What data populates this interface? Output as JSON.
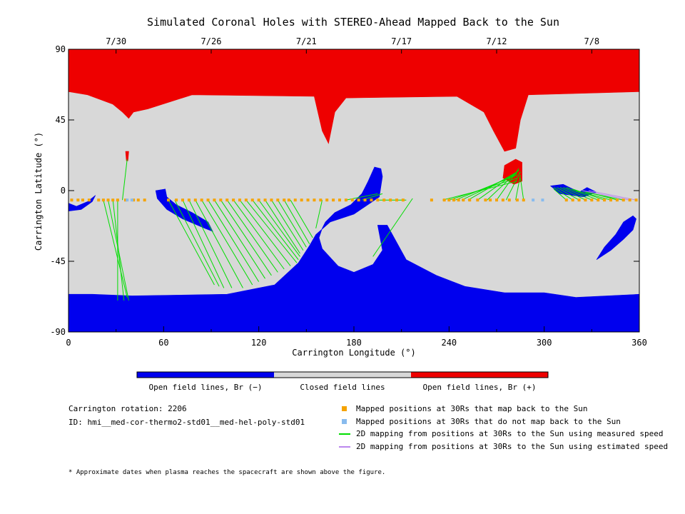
{
  "chart_data": {
    "type": "map",
    "title": "Simulated Coronal Holes with STEREO-Ahead Mapped Back to the Sun",
    "xlabel": "Carrington Longitude (°)",
    "ylabel": "Carrington Latitude (°)",
    "xlim": [
      0,
      360
    ],
    "ylim": [
      -90,
      90
    ],
    "x_ticks": [
      0,
      60,
      120,
      180,
      240,
      300,
      360
    ],
    "y_ticks": [
      90,
      45,
      0,
      -45,
      -90
    ],
    "top_axis": {
      "labels": [
        "7/30",
        "7/26",
        "7/21",
        "7/17",
        "7/12",
        "7/8"
      ],
      "positions": [
        30,
        90,
        150,
        210,
        270,
        330
      ]
    },
    "colorbar": [
      {
        "label": "Open field lines, Br (−)",
        "color": "#0000ee"
      },
      {
        "label": "Closed field lines",
        "color": "#d8d8d8"
      },
      {
        "label": "Open field lines, Br (+)",
        "color": "#ee0000"
      }
    ],
    "colors": {
      "open_negative": "#0000ee",
      "closed": "#d8d8d8",
      "open_positive": "#ee0000",
      "mapped": "#f5a300",
      "not_mapped": "#88bbee",
      "measured": "#00dd00",
      "estimated": "#bb88ee"
    },
    "regions": [
      {
        "field": "open_positive",
        "points": [
          [
            0,
            90
          ],
          [
            360,
            90
          ],
          [
            360,
            63
          ],
          [
            290,
            61
          ],
          [
            285,
            45
          ],
          [
            282,
            27
          ],
          [
            275,
            25
          ],
          [
            268,
            38
          ],
          [
            262,
            50
          ],
          [
            245,
            60
          ],
          [
            175,
            59
          ],
          [
            168,
            50
          ],
          [
            164,
            30
          ],
          [
            160,
            38
          ],
          [
            155,
            60
          ],
          [
            78,
            61
          ],
          [
            50,
            52
          ],
          [
            41,
            50
          ],
          [
            38,
            46
          ],
          [
            34,
            50
          ],
          [
            28,
            55
          ],
          [
            12,
            61
          ],
          [
            0,
            63
          ]
        ]
      },
      {
        "field": "open_positive",
        "points": [
          [
            275,
            16
          ],
          [
            282,
            20
          ],
          [
            286,
            18
          ],
          [
            286,
            6
          ],
          [
            281,
            4
          ],
          [
            274,
            8
          ]
        ]
      },
      {
        "field": "open_positive",
        "points": [
          [
            36,
            25
          ],
          [
            38,
            25
          ],
          [
            37.5,
            19
          ],
          [
            36.5,
            19
          ]
        ]
      },
      {
        "field": "open_negative",
        "points": [
          [
            0,
            -66
          ],
          [
            15,
            -66
          ],
          [
            40,
            -67
          ],
          [
            100,
            -66
          ],
          [
            130,
            -60
          ],
          [
            145,
            -46
          ],
          [
            152,
            -35
          ],
          [
            156,
            -28
          ],
          [
            165,
            -20
          ],
          [
            180,
            -15
          ],
          [
            196,
            -4
          ],
          [
            198,
            9
          ],
          [
            197,
            14
          ],
          [
            193,
            15
          ],
          [
            189,
            6
          ],
          [
            185,
            -2
          ],
          [
            178,
            -9
          ],
          [
            168,
            -14
          ],
          [
            162,
            -20
          ],
          [
            160,
            -24
          ],
          [
            158,
            -30
          ],
          [
            160,
            -37
          ],
          [
            170,
            -48
          ],
          [
            180,
            -52
          ],
          [
            192,
            -47
          ],
          [
            198,
            -38
          ],
          [
            195,
            -22
          ],
          [
            201,
            -22
          ],
          [
            213,
            -44
          ],
          [
            232,
            -54
          ],
          [
            250,
            -61
          ],
          [
            275,
            -65
          ],
          [
            300,
            -65
          ],
          [
            320,
            -68
          ],
          [
            340,
            -67
          ],
          [
            360,
            -66
          ],
          [
            360,
            -90
          ],
          [
            0,
            -90
          ]
        ]
      },
      {
        "field": "open_negative",
        "points": [
          [
            0,
            -8
          ],
          [
            5,
            -10
          ],
          [
            12,
            -7
          ],
          [
            17,
            -3
          ],
          [
            15,
            -7
          ],
          [
            8,
            -12
          ],
          [
            0,
            -13
          ]
        ]
      },
      {
        "field": "open_negative",
        "points": [
          [
            55,
            0
          ],
          [
            61,
            1
          ],
          [
            62,
            -4
          ],
          [
            68,
            -9
          ],
          [
            78,
            -14
          ],
          [
            88,
            -20
          ],
          [
            91,
            -26
          ],
          [
            86,
            -24
          ],
          [
            72,
            -18
          ],
          [
            62,
            -12
          ],
          [
            56,
            -5
          ]
        ]
      },
      {
        "field": "open_negative",
        "points": [
          [
            304,
            3
          ],
          [
            312,
            4
          ],
          [
            318,
            1
          ],
          [
            322,
            -1
          ],
          [
            327,
            2
          ],
          [
            333,
            -1
          ],
          [
            325,
            -4
          ],
          [
            310,
            -2
          ]
        ]
      },
      {
        "field": "open_negative",
        "points": [
          [
            333,
            -44
          ],
          [
            342,
            -38
          ],
          [
            350,
            -31
          ],
          [
            356,
            -25
          ],
          [
            358,
            -18
          ],
          [
            356,
            -16
          ],
          [
            350,
            -20
          ],
          [
            345,
            -28
          ],
          [
            338,
            -36
          ]
        ]
      }
    ],
    "mapped_points_x": [
      2,
      6,
      9,
      13,
      19,
      22,
      25,
      28,
      31,
      36,
      41,
      44,
      48,
      63,
      68,
      72,
      76,
      80,
      84,
      88,
      92,
      96,
      100,
      104,
      108,
      112,
      116,
      120,
      124,
      128,
      132,
      136,
      139,
      143,
      147,
      151,
      155,
      159,
      163,
      167,
      171,
      175,
      179,
      183,
      187,
      191,
      195,
      199,
      203,
      207,
      211,
      229,
      237,
      240,
      243,
      246,
      249,
      253,
      258,
      263,
      266,
      270,
      274,
      278,
      283,
      287,
      314,
      318,
      322,
      326,
      330,
      334,
      338,
      342,
      346,
      350,
      354,
      358
    ],
    "mapped_points_lat": -6,
    "unmapped_points_x": [
      37,
      40,
      293,
      299
    ],
    "measured_lines": [
      [
        [
          22,
          -6
        ],
        [
          37,
          -68
        ]
      ],
      [
        [
          25,
          -6
        ],
        [
          38,
          -70
        ]
      ],
      [
        [
          28,
          -6
        ],
        [
          35,
          -70
        ]
      ],
      [
        [
          31,
          -6
        ],
        [
          31,
          -70
        ]
      ],
      [
        [
          34,
          -6
        ],
        [
          37,
          20
        ]
      ],
      [
        [
          63,
          -6
        ],
        [
          92,
          -60
        ]
      ],
      [
        [
          67,
          -6
        ],
        [
          95,
          -61
        ]
      ],
      [
        [
          72,
          -6
        ],
        [
          98,
          -62
        ]
      ],
      [
        [
          76,
          -6
        ],
        [
          103,
          -62
        ]
      ],
      [
        [
          80,
          -6
        ],
        [
          110,
          -62
        ]
      ],
      [
        [
          84,
          -6
        ],
        [
          116,
          -60
        ]
      ],
      [
        [
          88,
          -6
        ],
        [
          120,
          -58
        ]
      ],
      [
        [
          92,
          -6
        ],
        [
          124,
          -56
        ]
      ],
      [
        [
          96,
          -6
        ],
        [
          128,
          -54
        ]
      ],
      [
        [
          100,
          -6
        ],
        [
          132,
          -52
        ]
      ],
      [
        [
          104,
          -6
        ],
        [
          136,
          -50
        ]
      ],
      [
        [
          108,
          -6
        ],
        [
          140,
          -48
        ]
      ],
      [
        [
          112,
          -6
        ],
        [
          144,
          -46
        ]
      ],
      [
        [
          116,
          -6
        ],
        [
          145,
          -44
        ]
      ],
      [
        [
          120,
          -6
        ],
        [
          146,
          -42
        ]
      ],
      [
        [
          124,
          -6
        ],
        [
          146,
          -40
        ]
      ],
      [
        [
          128,
          -6
        ],
        [
          148,
          -38
        ]
      ],
      [
        [
          132,
          -6
        ],
        [
          150,
          -36
        ]
      ],
      [
        [
          136,
          -6
        ],
        [
          152,
          -34
        ]
      ],
      [
        [
          140,
          -6
        ],
        [
          154,
          -30
        ]
      ],
      [
        [
          160,
          -6
        ],
        [
          156,
          -24
        ]
      ],
      [
        [
          175,
          -6
        ],
        [
          195,
          -2
        ]
      ],
      [
        [
          185,
          -6
        ],
        [
          198,
          -2
        ]
      ],
      [
        [
          217,
          -5
        ],
        [
          192,
          -42
        ]
      ],
      [
        [
          213,
          -6
        ],
        [
          196,
          -6
        ]
      ],
      [
        [
          236,
          -6
        ],
        [
          283,
          6
        ]
      ],
      [
        [
          240,
          -6
        ],
        [
          283,
          8
        ]
      ],
      [
        [
          244,
          -6
        ],
        [
          283,
          10
        ]
      ],
      [
        [
          248,
          -6
        ],
        [
          283,
          11
        ]
      ],
      [
        [
          252,
          -6
        ],
        [
          283,
          12
        ]
      ],
      [
        [
          258,
          -6
        ],
        [
          283,
          12
        ]
      ],
      [
        [
          264,
          -6
        ],
        [
          284,
          13
        ]
      ],
      [
        [
          270,
          -6
        ],
        [
          284,
          14
        ]
      ],
      [
        [
          276,
          -6
        ],
        [
          285,
          12
        ]
      ],
      [
        [
          282,
          -6
        ],
        [
          285,
          10
        ]
      ],
      [
        [
          287,
          -6
        ],
        [
          285,
          8
        ]
      ],
      [
        [
          314,
          -6
        ],
        [
          306,
          1
        ]
      ],
      [
        [
          318,
          -6
        ],
        [
          306,
          2
        ]
      ],
      [
        [
          322,
          -6
        ],
        [
          308,
          2
        ]
      ],
      [
        [
          326,
          -6
        ],
        [
          310,
          2
        ]
      ],
      [
        [
          330,
          -6
        ],
        [
          312,
          2
        ]
      ],
      [
        [
          334,
          -6
        ],
        [
          314,
          2
        ]
      ],
      [
        [
          338,
          -6
        ],
        [
          318,
          1
        ]
      ],
      [
        [
          342,
          -6
        ],
        [
          320,
          0
        ]
      ],
      [
        [
          346,
          -6
        ],
        [
          324,
          0
        ]
      ],
      [
        [
          350,
          -6
        ],
        [
          326,
          -1
        ]
      ]
    ],
    "estimated_lines": [
      [
        [
          354,
          -6
        ],
        [
          324,
          0
        ]
      ],
      [
        [
          358,
          -6
        ],
        [
          328,
          0
        ]
      ]
    ]
  },
  "info": {
    "rotation": "Carrington rotation: 2206",
    "id": "ID: hmi__med-cor-thermo2-std01__med-hel-poly-std01"
  },
  "legend": [
    {
      "label": "Mapped positions at 30Rs that map back to the Sun",
      "kind": "mapped"
    },
    {
      "label": "Mapped positions at 30Rs that do not map back to the Sun",
      "kind": "not_mapped"
    },
    {
      "label": "2D mapping from positions at 30Rs to the Sun using measured speed",
      "kind": "measured"
    },
    {
      "label": "2D mapping from positions at 30Rs to the Sun using estimated speed",
      "kind": "estimated"
    }
  ],
  "footnote": "* Approximate dates when plasma reaches the spacecraft are shown above the figure."
}
